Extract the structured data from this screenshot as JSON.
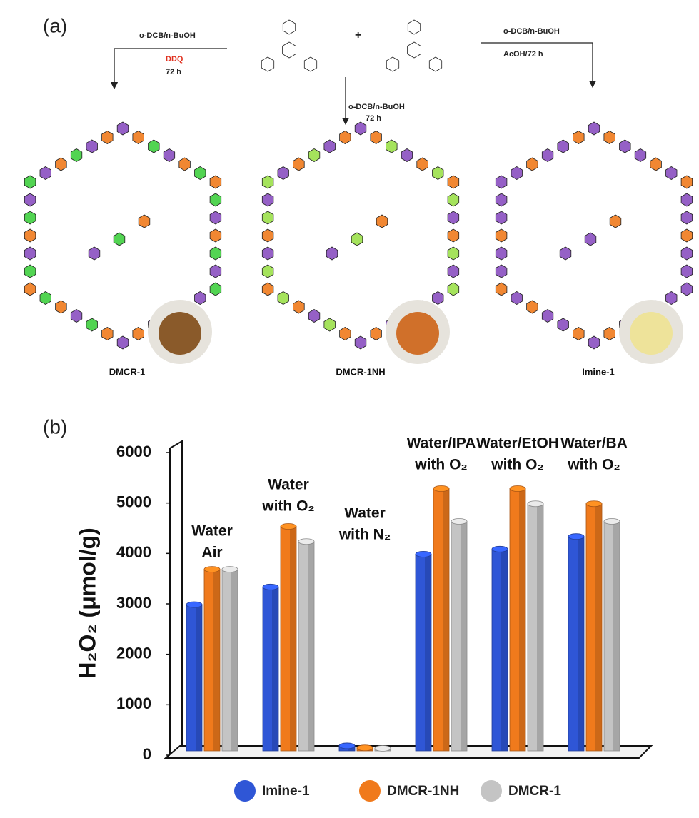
{
  "scheme": {
    "label": "(a)",
    "plus": "+",
    "left_conditions": [
      "o-DCB/n-BuOH",
      "DDQ",
      "72 h"
    ],
    "middle_conditions": [
      "o-DCB/n-BuOH",
      "72 h"
    ],
    "right_conditions": [
      "o-DCB/n-BuOH",
      "AcOH/72 h"
    ],
    "products": [
      "DMCR-1",
      "DMCR-1NH",
      "Imine-1"
    ]
  },
  "panel_b_label": "(b)",
  "chart_data": {
    "type": "bar",
    "y_label": "H₂O₂ (μmol/g)",
    "categories": [
      [
        "Water",
        "Air"
      ],
      [
        "Water",
        "with O₂"
      ],
      [
        "Water",
        "with N₂"
      ],
      [
        "Water/IPA",
        "with O₂"
      ],
      [
        "Water/EtOH",
        "with O₂"
      ],
      [
        "Water/BA",
        "with O₂"
      ]
    ],
    "series": [
      {
        "name": "Imine-1",
        "color": "#2f56d6",
        "values": [
          2900,
          3250,
          100,
          3900,
          4000,
          4250
        ]
      },
      {
        "name": "DMCR-1NH",
        "color": "#f07a1c",
        "values": [
          3600,
          4450,
          60,
          5200,
          5200,
          4900
        ]
      },
      {
        "name": "DMCR-1",
        "color": "#c4c4c4",
        "values": [
          3600,
          4150,
          50,
          4550,
          4900,
          4550
        ]
      }
    ],
    "ylim": [
      0,
      6000
    ],
    "yticks": [
      0,
      1000,
      2000,
      3000,
      4000,
      5000,
      6000
    ],
    "legend": "bottom"
  }
}
